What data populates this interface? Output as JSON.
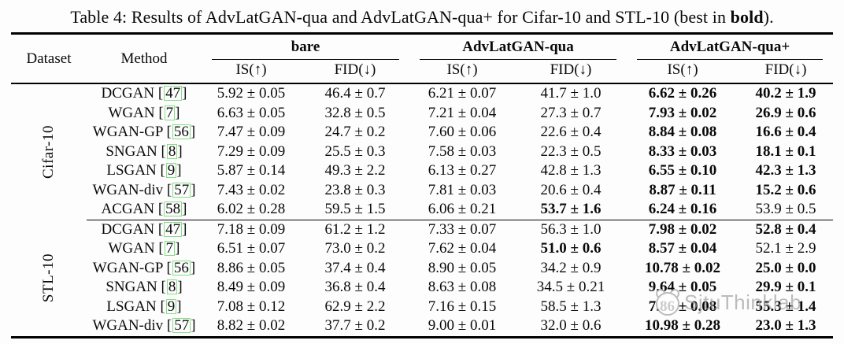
{
  "title": {
    "prefix": "Table 4: Results of AdvLatGAN-qua and AdvLatGAN-qua+ for Cifar-10 and STL-10 (best in ",
    "bold_word": "bold",
    "suffix": ")."
  },
  "watermark": {
    "text": "SjtuThinklab",
    "logo": "cat-logo",
    "color": "#9b9b9b"
  },
  "colors": {
    "cite_box_border": "#82e082",
    "rule": "#000000",
    "background": "#fdfdfd"
  },
  "table": {
    "col_headers": {
      "dataset": "Dataset",
      "method": "Method",
      "groups": [
        {
          "label": "bare"
        },
        {
          "label": "AdvLatGAN-qua"
        },
        {
          "label": "AdvLatGAN-qua+"
        }
      ],
      "metric_is": "IS(↑)",
      "metric_fid": "FID(↓)"
    },
    "groups": [
      {
        "dataset": "Cifar-10",
        "rows": [
          {
            "method": "DCGAN",
            "cite": "47",
            "cells": [
              {
                "t": "5.92 ± 0.05"
              },
              {
                "t": "46.4 ± 0.7"
              },
              {
                "t": "6.21 ± 0.07"
              },
              {
                "t": "41.7 ± 1.0"
              },
              {
                "t": "6.62 ± 0.26",
                "b": true
              },
              {
                "t": "40.2 ± 1.9",
                "b": true
              }
            ]
          },
          {
            "method": "WGAN",
            "cite": "7",
            "cells": [
              {
                "t": "6.63 ± 0.05"
              },
              {
                "t": "32.8 ± 0.5"
              },
              {
                "t": "7.21 ± 0.04"
              },
              {
                "t": "27.3 ± 0.7"
              },
              {
                "t": "7.93 ± 0.02",
                "b": true
              },
              {
                "t": "26.9 ± 0.6",
                "b": true
              }
            ]
          },
          {
            "method": "WGAN-GP",
            "cite": "56",
            "cells": [
              {
                "t": "7.47 ± 0.09"
              },
              {
                "t": "24.7 ± 0.2"
              },
              {
                "t": "7.60 ± 0.06"
              },
              {
                "t": "22.6 ± 0.4"
              },
              {
                "t": "8.84 ± 0.08",
                "b": true
              },
              {
                "t": "16.6 ± 0.4",
                "b": true
              }
            ]
          },
          {
            "method": "SNGAN",
            "cite": "8",
            "cells": [
              {
                "t": "7.29 ± 0.09"
              },
              {
                "t": "25.5 ± 0.3"
              },
              {
                "t": "7.58 ± 0.03"
              },
              {
                "t": "22.3 ± 0.5"
              },
              {
                "t": "8.33 ± 0.03",
                "b": true
              },
              {
                "t": "18.1 ± 0.1",
                "b": true
              }
            ]
          },
          {
            "method": "LSGAN",
            "cite": "9",
            "cells": [
              {
                "t": "5.87 ± 0.14"
              },
              {
                "t": "49.3 ± 2.2"
              },
              {
                "t": "6.13 ± 0.27"
              },
              {
                "t": "42.8 ± 1.3"
              },
              {
                "t": "6.55 ± 0.10",
                "b": true
              },
              {
                "t": "42.3 ± 1.3",
                "b": true
              }
            ]
          },
          {
            "method": "WGAN-div",
            "cite": "57",
            "cells": [
              {
                "t": "7.43 ± 0.02"
              },
              {
                "t": "23.8 ± 0.3"
              },
              {
                "t": "7.81 ± 0.03"
              },
              {
                "t": "20.6 ± 0.4"
              },
              {
                "t": "8.87 ± 0.11",
                "b": true
              },
              {
                "t": "15.2 ± 0.6",
                "b": true
              }
            ]
          },
          {
            "method": "ACGAN",
            "cite": "58",
            "cells": [
              {
                "t": "6.02 ± 0.28"
              },
              {
                "t": "59.5 ± 1.5"
              },
              {
                "t": "6.06 ± 0.21"
              },
              {
                "t": "53.7 ± 1.6",
                "b": true
              },
              {
                "t": "6.24 ± 0.16",
                "b": true
              },
              {
                "t": "53.9 ± 0.5"
              }
            ]
          }
        ]
      },
      {
        "dataset": "STL-10",
        "rows": [
          {
            "method": "DCGAN",
            "cite": "47",
            "cells": [
              {
                "t": "7.18 ± 0.09"
              },
              {
                "t": "61.2 ± 1.2"
              },
              {
                "t": "7.33 ± 0.07"
              },
              {
                "t": "56.3 ± 1.0"
              },
              {
                "t": "7.98 ± 0.02",
                "b": true
              },
              {
                "t": "52.8 ± 0.4",
                "b": true
              }
            ]
          },
          {
            "method": "WGAN",
            "cite": "7",
            "cells": [
              {
                "t": "6.51 ± 0.07"
              },
              {
                "t": "73.0 ± 0.2"
              },
              {
                "t": "7.62 ± 0.04"
              },
              {
                "t": "51.0 ± 0.6",
                "b": true
              },
              {
                "t": "8.57 ± 0.04",
                "b": true
              },
              {
                "t": "52.1 ± 2.9"
              }
            ]
          },
          {
            "method": "WGAN-GP",
            "cite": "56",
            "cells": [
              {
                "t": "8.86 ± 0.05"
              },
              {
                "t": "37.4 ± 0.4"
              },
              {
                "t": "8.90 ± 0.05"
              },
              {
                "t": "34.2 ± 0.9"
              },
              {
                "t": "10.78 ± 0.02",
                "b": true
              },
              {
                "t": "25.0 ± 0.0",
                "b": true
              }
            ]
          },
          {
            "method": "SNGAN",
            "cite": "8",
            "cells": [
              {
                "t": "8.49 ± 0.09"
              },
              {
                "t": "36.8 ± 0.4"
              },
              {
                "t": "8.63 ± 0.08"
              },
              {
                "t": "34.5 ± 0.21"
              },
              {
                "t": "9.64 ± 0.05",
                "b": true
              },
              {
                "t": "29.9 ± 0.1",
                "b": true
              }
            ]
          },
          {
            "method": "LSGAN",
            "cite": "9",
            "cells": [
              {
                "t": "7.08 ± 0.12"
              },
              {
                "t": "62.9 ± 2.2"
              },
              {
                "t": "7.16 ± 0.15"
              },
              {
                "t": "58.5 ± 1.3"
              },
              {
                "t": "7.86 ± 0.08",
                "b": true
              },
              {
                "t": "55.3 ± 1.4",
                "b": true
              }
            ]
          },
          {
            "method": "WGAN-div",
            "cite": "57",
            "cells": [
              {
                "t": "8.82 ± 0.02"
              },
              {
                "t": "37.7 ± 0.2"
              },
              {
                "t": "9.00 ± 0.01"
              },
              {
                "t": "32.0 ± 0.6"
              },
              {
                "t": "10.98 ± 0.28",
                "b": true
              },
              {
                "t": "23.0 ± 1.3",
                "b": true
              }
            ]
          }
        ]
      }
    ]
  }
}
